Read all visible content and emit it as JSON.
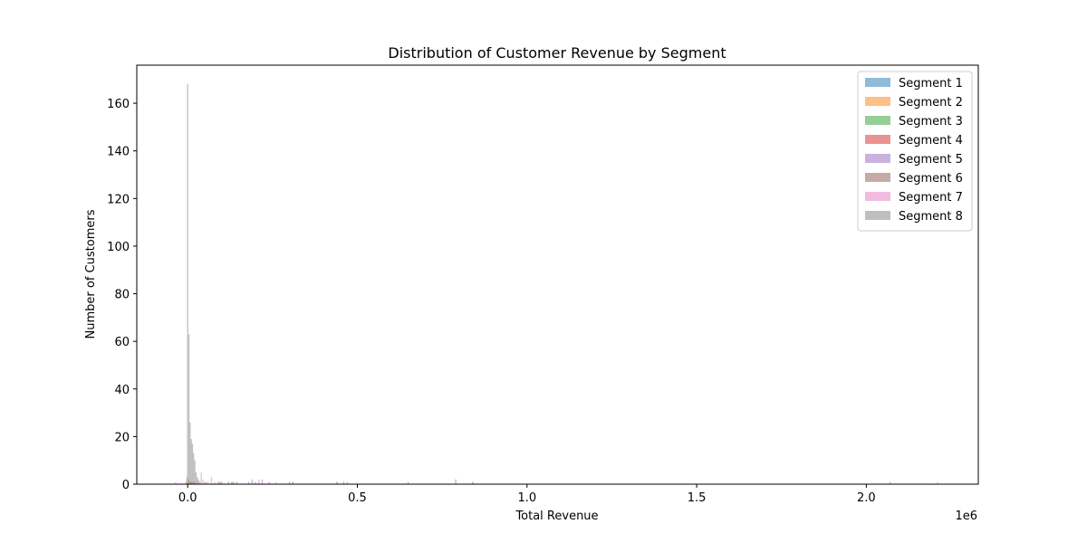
{
  "chart_data": {
    "type": "bar",
    "title": "Distribution of Customer Revenue by Segment",
    "xlabel": "Total Revenue",
    "ylabel": "Number of Customers",
    "x_offset_label": "1e6",
    "xlim": [
      -0.15,
      2.33
    ],
    "ylim": [
      0,
      176
    ],
    "x_ticks": [
      0.0,
      0.5,
      1.0,
      1.5,
      2.0
    ],
    "x_tick_labels": [
      "0.0",
      "0.5",
      "1.0",
      "1.5",
      "2.0"
    ],
    "y_ticks": [
      0,
      20,
      40,
      60,
      80,
      100,
      120,
      140,
      160
    ],
    "y_tick_labels": [
      "0",
      "20",
      "40",
      "60",
      "80",
      "100",
      "120",
      "140",
      "160"
    ],
    "grid": false,
    "legend_position": "top-right",
    "bin_width": 0.0035,
    "series": [
      {
        "name": "Segment 1",
        "color": "#1f77b4",
        "bars": [
          [
            0.005,
            1
          ],
          [
            0.012,
            1
          ],
          [
            0.02,
            1
          ]
        ]
      },
      {
        "name": "Segment 2",
        "color": "#ff7f0e",
        "bars": [
          [
            0.003,
            2
          ],
          [
            0.008,
            1
          ],
          [
            0.015,
            1
          ],
          [
            0.03,
            1
          ]
        ]
      },
      {
        "name": "Segment 3",
        "color": "#2ca02c",
        "bars": [
          [
            0.1,
            1
          ],
          [
            0.12,
            1
          ],
          [
            0.65,
            1
          ],
          [
            0.79,
            2
          ],
          [
            2.07,
            1
          ]
        ]
      },
      {
        "name": "Segment 4",
        "color": "#d62728",
        "bars": [
          [
            0.84,
            1
          ],
          [
            0.44,
            1
          ],
          [
            0.46,
            1
          ]
        ]
      },
      {
        "name": "Segment 5",
        "color": "#9467bd",
        "bars": [
          [
            0.18,
            1
          ],
          [
            0.19,
            2
          ],
          [
            0.2,
            1
          ],
          [
            0.22,
            2
          ],
          [
            0.24,
            1
          ],
          [
            0.47,
            1
          ]
        ]
      },
      {
        "name": "Segment 6",
        "color": "#8c564b",
        "bars": [
          [
            0.09,
            1
          ],
          [
            0.095,
            1
          ],
          [
            0.13,
            1
          ],
          [
            0.135,
            1
          ],
          [
            0.145,
            1
          ],
          [
            0.3,
            1
          ],
          [
            0.31,
            1
          ]
        ]
      },
      {
        "name": "Segment 7",
        "color": "#e377c2",
        "bars": [
          [
            -0.035,
            1
          ],
          [
            0.04,
            5
          ],
          [
            0.045,
            2
          ],
          [
            0.06,
            1
          ],
          [
            0.07,
            3
          ],
          [
            0.08,
            1
          ],
          [
            0.21,
            2
          ],
          [
            0.26,
            1
          ],
          [
            2.21,
            1
          ]
        ]
      },
      {
        "name": "Segment 8",
        "color": "#7f7f7f",
        "bars": [
          [
            -0.005,
            1
          ],
          [
            -0.002,
            3
          ],
          [
            0.0,
            168
          ],
          [
            0.0035,
            63
          ],
          [
            0.007,
            26
          ],
          [
            0.0105,
            19
          ],
          [
            0.014,
            17
          ],
          [
            0.0175,
            13
          ],
          [
            0.021,
            10
          ],
          [
            0.0245,
            5
          ],
          [
            0.028,
            3
          ],
          [
            0.032,
            2
          ],
          [
            0.036,
            1
          ],
          [
            0.05,
            1
          ],
          [
            0.055,
            1
          ]
        ]
      }
    ]
  }
}
